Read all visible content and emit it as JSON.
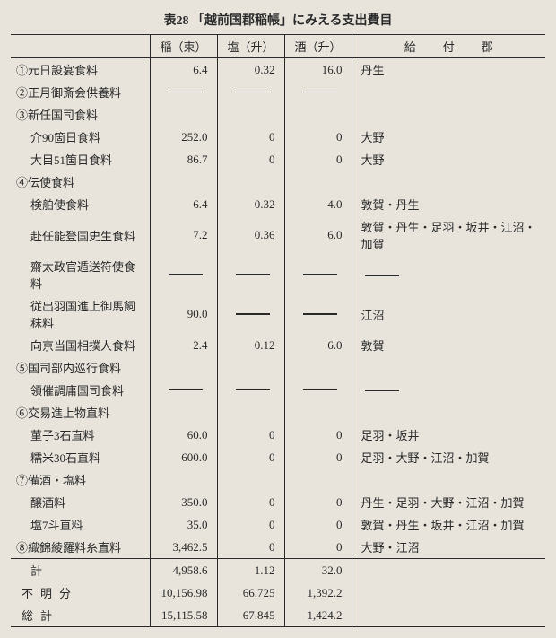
{
  "title": "表28 「越前国郡稲帳」にみえる支出費目",
  "columns": {
    "c0": "",
    "c1": "稲（束）",
    "c2": "塩（升）",
    "c3": "酒（升）",
    "c4": "給付郡"
  },
  "rows": [
    {
      "type": "row",
      "label": "①元日設宴食料",
      "sub": false,
      "v": [
        "6.4",
        "0.32",
        "16.0"
      ],
      "note": "丹生"
    },
    {
      "type": "row",
      "label": "②正月御斎会供養料",
      "sub": false,
      "v": [
        "—",
        "—",
        "—"
      ],
      "note": ""
    },
    {
      "type": "row",
      "label": "③新任国司食料",
      "sub": false,
      "v": [
        "",
        "",
        ""
      ],
      "note": ""
    },
    {
      "type": "row",
      "label": "介90箇日食料",
      "sub": true,
      "v": [
        "252.0",
        "0",
        "0"
      ],
      "note": "大野"
    },
    {
      "type": "row",
      "label": "大目51箇日食料",
      "sub": true,
      "v": [
        "86.7",
        "0",
        "0"
      ],
      "note": "大野"
    },
    {
      "type": "row",
      "label": "④伝使食料",
      "sub": false,
      "v": [
        "",
        "",
        ""
      ],
      "note": ""
    },
    {
      "type": "row",
      "label": "検舶使食料",
      "sub": true,
      "v": [
        "6.4",
        "0.32",
        "4.0"
      ],
      "note": "敦賀・丹生"
    },
    {
      "type": "row",
      "label": "赴任能登国史生食料",
      "sub": true,
      "v": [
        "7.2",
        "0.36",
        "6.0"
      ],
      "note": "敦賀・丹生・足羽・坂井・江沼・加賀"
    },
    {
      "type": "row",
      "label": "齋太政官遁送符使食料",
      "sub": true,
      "v": [
        "—",
        "—",
        "—"
      ],
      "note": "—"
    },
    {
      "type": "row",
      "label": "従出羽国進上御馬飼秣料",
      "sub": true,
      "v": [
        "90.0",
        "—",
        "—"
      ],
      "note": "江沼"
    },
    {
      "type": "row",
      "label": "向京当国相撲人食料",
      "sub": true,
      "v": [
        "2.4",
        "0.12",
        "6.0"
      ],
      "note": "敦賀"
    },
    {
      "type": "row",
      "label": "⑤国司部内巡行食料",
      "sub": false,
      "v": [
        "",
        "",
        ""
      ],
      "note": ""
    },
    {
      "type": "row",
      "label": "領催調庸国司食料",
      "sub": true,
      "v": [
        "—",
        "—",
        "—"
      ],
      "note": "—"
    },
    {
      "type": "row",
      "label": "⑥交易進上物直料",
      "sub": false,
      "v": [
        "",
        "",
        ""
      ],
      "note": ""
    },
    {
      "type": "row",
      "label": "菫子3石直料",
      "sub": true,
      "v": [
        "60.0",
        "0",
        "0"
      ],
      "note": "足羽・坂井"
    },
    {
      "type": "row",
      "label": "糯米30石直料",
      "sub": true,
      "v": [
        "600.0",
        "0",
        "0"
      ],
      "note": "足羽・大野・江沼・加賀"
    },
    {
      "type": "row",
      "label": "⑦備酒・塩料",
      "sub": false,
      "v": [
        "",
        "",
        ""
      ],
      "note": ""
    },
    {
      "type": "row",
      "label": "醸酒料",
      "sub": true,
      "v": [
        "350.0",
        "0",
        "0"
      ],
      "note": "丹生・足羽・大野・江沼・加賀"
    },
    {
      "type": "row",
      "label": "塩7斗直料",
      "sub": true,
      "v": [
        "35.0",
        "0",
        "0"
      ],
      "note": "敦賀・丹生・坂井・江沼・加賀"
    },
    {
      "type": "row",
      "label": "⑧織錦綾羅料糸直料",
      "sub": false,
      "v": [
        "3,462.5",
        "0",
        "0"
      ],
      "note": "大野・江沼"
    }
  ],
  "totals": [
    {
      "label": "計",
      "cls": "spread",
      "v": [
        "4,958.6",
        "1.12",
        "32.0"
      ],
      "note": ""
    },
    {
      "label": "不明分",
      "cls": "spread2",
      "v": [
        "10,156.98",
        "66.725",
        "1,392.2"
      ],
      "note": ""
    },
    {
      "label": "総計",
      "cls": "spread2",
      "v": [
        "15,115.58",
        "67.845",
        "1,424.2"
      ],
      "note": ""
    }
  ]
}
